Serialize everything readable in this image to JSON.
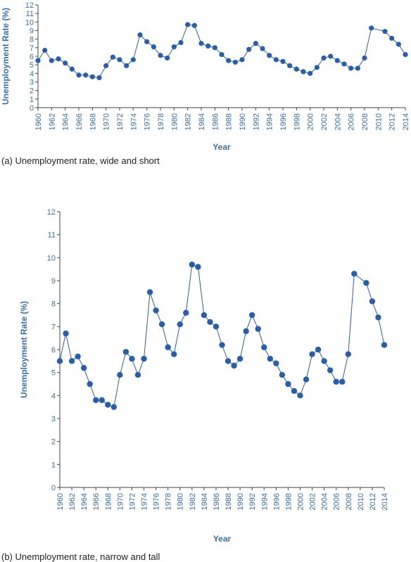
{
  "chart_data": [
    {
      "type": "line",
      "caption": "(a) Unemployment rate, wide and short",
      "xlabel": "Year",
      "ylabel": "Unemployment Rate (%)",
      "xlim": [
        1960,
        2014
      ],
      "ylim": [
        0,
        12
      ],
      "x_ticks": [
        1960,
        1962,
        1964,
        1966,
        1968,
        1970,
        1972,
        1974,
        1976,
        1978,
        1980,
        1982,
        1984,
        1986,
        1988,
        1990,
        1992,
        1994,
        1996,
        1998,
        2000,
        2002,
        2004,
        2006,
        2008,
        2010,
        2012,
        2014
      ],
      "y_ticks": [
        0,
        1,
        2,
        3,
        4,
        5,
        6,
        7,
        8,
        9,
        10,
        11,
        12
      ],
      "grid": false,
      "series_ref": "unemployment"
    },
    {
      "type": "line",
      "caption": "(b) Unemployment rate, narrow and tall",
      "xlabel": "Year",
      "ylabel": "Unemployment Rate (%)",
      "xlim": [
        1960,
        2014
      ],
      "ylim": [
        0,
        12
      ],
      "x_ticks": [
        1960,
        1962,
        1964,
        1966,
        1968,
        1970,
        1972,
        1974,
        1976,
        1978,
        1980,
        1982,
        1984,
        1986,
        1988,
        1990,
        1992,
        1994,
        1996,
        1998,
        2000,
        2002,
        2004,
        2006,
        2008,
        2010,
        2012,
        2014
      ],
      "y_ticks": [
        0,
        1,
        2,
        3,
        4,
        5,
        6,
        7,
        8,
        9,
        10,
        11,
        12
      ],
      "grid": false,
      "series_ref": "unemployment"
    }
  ],
  "series": {
    "unemployment": {
      "color": "#2a5ea8",
      "x": [
        1960,
        1961,
        1962,
        1963,
        1964,
        1965,
        1966,
        1967,
        1968,
        1969,
        1970,
        1971,
        1972,
        1973,
        1974,
        1975,
        1976,
        1977,
        1978,
        1979,
        1980,
        1981,
        1982,
        1983,
        1984,
        1985,
        1986,
        1987,
        1988,
        1989,
        1990,
        1991,
        1992,
        1993,
        1994,
        1995,
        1996,
        1997,
        1998,
        1999,
        2000,
        2001,
        2002,
        2003,
        2004,
        2005,
        2006,
        2007,
        2008,
        2009,
        2011,
        2012,
        2013,
        2014
      ],
      "y": [
        5.5,
        6.7,
        5.5,
        5.7,
        5.2,
        4.5,
        3.8,
        3.8,
        3.6,
        3.5,
        4.9,
        5.9,
        5.6,
        4.9,
        5.6,
        8.5,
        7.7,
        7.1,
        6.1,
        5.8,
        7.1,
        7.6,
        9.7,
        9.6,
        7.5,
        7.2,
        7.0,
        6.2,
        5.5,
        5.3,
        5.6,
        6.8,
        7.5,
        6.9,
        6.1,
        5.6,
        5.4,
        4.9,
        4.5,
        4.2,
        4.0,
        4.7,
        5.8,
        6.0,
        5.5,
        5.1,
        4.6,
        4.6,
        5.8,
        9.3,
        8.9,
        8.1,
        7.4,
        6.2
      ]
    }
  }
}
